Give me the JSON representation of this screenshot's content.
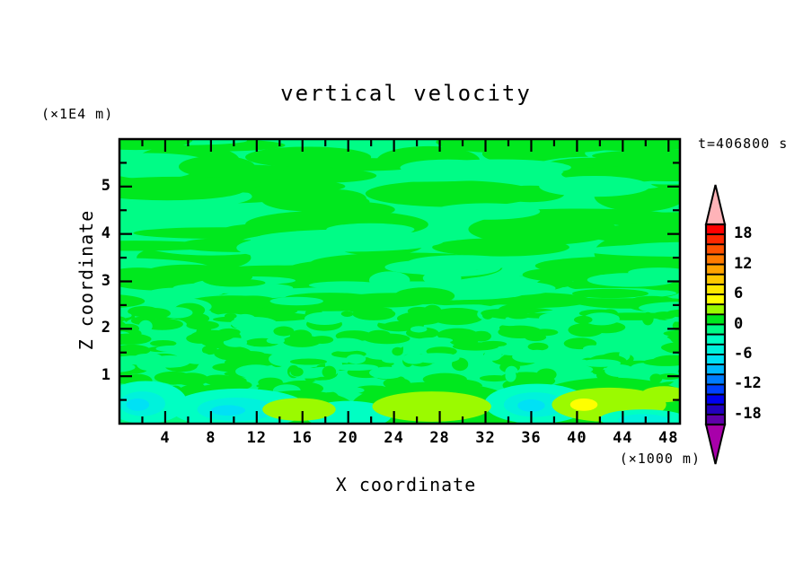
{
  "chart_data": {
    "type": "heatmap",
    "subtype": "filled-contour-xz-section",
    "title": "vertical velocity",
    "time": "t=406800 s",
    "xlabel": "X coordinate",
    "x_units": "(×1000 m)",
    "ylabel": "Z coordinate",
    "y_units": "(×1E4 m)",
    "xlim": [
      0,
      49
    ],
    "ylim": [
      0,
      6
    ],
    "x_major_ticks": [
      4,
      8,
      12,
      16,
      20,
      24,
      28,
      32,
      36,
      40,
      44,
      48
    ],
    "x_minor_ticks": [
      2,
      6,
      10,
      14,
      18,
      22,
      26,
      30,
      34,
      38,
      42,
      46
    ],
    "y_major_ticks": [
      1,
      2,
      3,
      4,
      5
    ],
    "y_minor_ticks": [
      0.5,
      1.5,
      2.5,
      3.5,
      4.5,
      5.5
    ],
    "grid": false,
    "legend_position": "right-colorbar",
    "contour_interval": 2,
    "colorbar_labels": [
      18,
      12,
      6,
      0,
      -6,
      -12,
      -18
    ],
    "colorbar_range": [
      -20,
      20
    ],
    "over_arrow_color": "#FFB3B8",
    "under_arrow_color": "#A800AA",
    "palette": [
      {
        "name": "red",
        "min": 18,
        "max": 20,
        "color": "#FF0000"
      },
      {
        "name": "red-orange",
        "min": 16,
        "max": 18,
        "color": "#FF2800"
      },
      {
        "name": "orange-red",
        "min": 14,
        "max": 16,
        "color": "#FF5200"
      },
      {
        "name": "orange",
        "min": 12,
        "max": 14,
        "color": "#FF7B00"
      },
      {
        "name": "amber",
        "min": 10,
        "max": 12,
        "color": "#FFA300"
      },
      {
        "name": "gold",
        "min": 8,
        "max": 10,
        "color": "#FFC800"
      },
      {
        "name": "yellow-gold",
        "min": 6,
        "max": 8,
        "color": "#FFE800"
      },
      {
        "name": "yellow",
        "min": 4,
        "max": 6,
        "color": "#FFFF00"
      },
      {
        "name": "green-yellow",
        "min": 2,
        "max": 4,
        "color": "#9BFA00"
      },
      {
        "name": "green",
        "min": 0,
        "max": 2,
        "color": "#00E81E"
      },
      {
        "name": "spring-green",
        "min": -2,
        "max": 0,
        "color": "#00FC86"
      },
      {
        "name": "aquamarine",
        "min": -4,
        "max": -2,
        "color": "#00FFC3"
      },
      {
        "name": "turquoise",
        "min": -6,
        "max": -4,
        "color": "#00F2DC"
      },
      {
        "name": "cyan",
        "min": -8,
        "max": -6,
        "color": "#00E1F5"
      },
      {
        "name": "sky-blue",
        "min": -10,
        "max": -8,
        "color": "#00B9FF"
      },
      {
        "name": "azure",
        "min": -12,
        "max": -10,
        "color": "#007DFF"
      },
      {
        "name": "blue",
        "min": -14,
        "max": -12,
        "color": "#0041FF"
      },
      {
        "name": "deep-blue",
        "min": -16,
        "max": -14,
        "color": "#0000F0"
      },
      {
        "name": "indigo",
        "min": -18,
        "max": -16,
        "color": "#2300BE"
      },
      {
        "name": "violet",
        "min": -20,
        "max": -18,
        "color": "#5F00AA"
      }
    ],
    "background_level": "spring-green",
    "field_description": "Turbulent vertical-velocity cross-section: weak alternating updrafts (green, 0..2) and downdrafts (spring green, -2..0) in horizontally elongated streaks aloft, fine speckled mixing for z between ~0.5 and 2.5, and stronger coherent cells near the surface: cyan/turquoise downdraft cores and yellow-green updraft cores with one yellow maximum.",
    "streak_features": [
      {
        "color": "green",
        "x": 6,
        "z": 5.55,
        "rx": 4.5,
        "rz": 0.33
      },
      {
        "color": "green",
        "x": 16.5,
        "z": 5.62,
        "rx": 5.5,
        "rz": 0.22
      },
      {
        "color": "green",
        "x": 27,
        "z": 5.55,
        "rx": 4.5,
        "rz": 0.3
      },
      {
        "color": "green",
        "x": 41,
        "z": 5.5,
        "rx": 6.5,
        "rz": 0.28
      },
      {
        "color": "green",
        "x": 10,
        "z": 4.95,
        "rx": 6.5,
        "rz": 0.3
      },
      {
        "color": "green",
        "x": 29,
        "z": 4.85,
        "rx": 7.5,
        "rz": 0.28
      },
      {
        "color": "green",
        "x": 45.5,
        "z": 4.8,
        "rx": 4.0,
        "rz": 0.33
      },
      {
        "color": "green",
        "x": 19,
        "z": 4.2,
        "rx": 8.0,
        "rz": 0.3
      },
      {
        "color": "green",
        "x": 37,
        "z": 4.1,
        "rx": 6.5,
        "rz": 0.33
      },
      {
        "color": "green",
        "x": 46.5,
        "z": 3.6,
        "rx": 5.0,
        "rz": 0.45
      },
      {
        "color": "green",
        "x": 6.5,
        "z": 3.5,
        "rx": 5.0,
        "rz": 0.3
      },
      {
        "color": "green",
        "x": 26,
        "z": 3.3,
        "rx": 7.5,
        "rz": 0.3
      }
    ],
    "bottom_features": [
      {
        "color": "green",
        "x": 15.8,
        "z": 0.32,
        "rx": 4.8,
        "rz": 0.38
      },
      {
        "color": "green",
        "x": 27.5,
        "z": 0.38,
        "rx": 7.2,
        "rz": 0.5
      },
      {
        "color": "green",
        "x": 43.0,
        "z": 0.42,
        "rx": 7.2,
        "rz": 0.55
      },
      {
        "color": "aquamarine",
        "x": 2.3,
        "z": 0.45,
        "rx": 3.6,
        "rz": 0.45
      },
      {
        "color": "turquoise",
        "x": 2.0,
        "z": 0.42,
        "rx": 2.0,
        "rz": 0.26
      },
      {
        "color": "cyan",
        "x": 1.6,
        "z": 0.4,
        "rx": 1.0,
        "rz": 0.13
      },
      {
        "color": "aquamarine",
        "x": 10.5,
        "z": 0.32,
        "rx": 6.0,
        "rz": 0.42
      },
      {
        "color": "turquoise",
        "x": 10.2,
        "z": 0.3,
        "rx": 3.4,
        "rz": 0.25
      },
      {
        "color": "cyan",
        "x": 9.5,
        "z": 0.28,
        "rx": 1.5,
        "rz": 0.11
      },
      {
        "color": "aquamarine",
        "x": 20.0,
        "z": 0.18,
        "rx": 3.8,
        "rz": 0.3
      },
      {
        "color": "aquamarine",
        "x": 36.5,
        "z": 0.42,
        "rx": 4.6,
        "rz": 0.42
      },
      {
        "color": "turquoise",
        "x": 36.3,
        "z": 0.4,
        "rx": 2.7,
        "rz": 0.26
      },
      {
        "color": "cyan",
        "x": 36.0,
        "z": 0.38,
        "rx": 1.2,
        "rz": 0.13
      },
      {
        "color": "green-yellow",
        "x": 15.7,
        "z": 0.3,
        "rx": 3.2,
        "rz": 0.24
      },
      {
        "color": "green-yellow",
        "x": 27.3,
        "z": 0.36,
        "rx": 5.2,
        "rz": 0.32
      },
      {
        "color": "green-yellow",
        "x": 42.8,
        "z": 0.4,
        "rx": 5.0,
        "rz": 0.36
      },
      {
        "color": "green-yellow",
        "x": 47.6,
        "z": 0.62,
        "rx": 2.0,
        "rz": 0.17
      },
      {
        "color": "yellow",
        "x": 40.6,
        "z": 0.4,
        "rx": 1.2,
        "rz": 0.13
      },
      {
        "color": "aquamarine",
        "x": 45.8,
        "z": 0.1,
        "rx": 3.8,
        "rz": 0.2
      },
      {
        "color": "turquoise",
        "x": 45.8,
        "z": 0.08,
        "rx": 2.2,
        "rz": 0.12
      }
    ]
  }
}
